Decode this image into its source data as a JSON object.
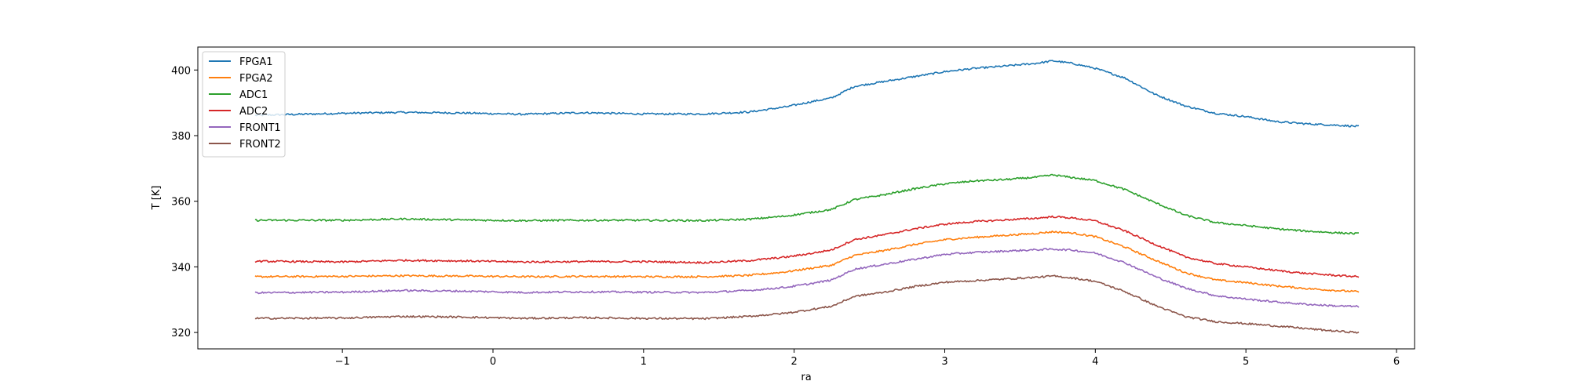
{
  "chart_data": {
    "type": "line",
    "title": "",
    "xlabel": "ra",
    "ylabel": "T [K]",
    "xlim": [
      -1.96,
      6.12
    ],
    "ylim": [
      315,
      407
    ],
    "xticks": [
      -1,
      0,
      1,
      2,
      3,
      4,
      5,
      6
    ],
    "xtick_labels": [
      "−1",
      "0",
      "1",
      "2",
      "3",
      "4",
      "5",
      "6"
    ],
    "yticks": [
      320,
      340,
      360,
      380,
      400
    ],
    "ytick_labels": [
      "320",
      "340",
      "360",
      "380",
      "400"
    ],
    "grid": false,
    "legend_position": "top-left",
    "series": [
      {
        "name": "FPGA1",
        "color": "#1f77b4",
        "x": [
          -1.58,
          -1.0,
          -0.6,
          -0.2,
          0.2,
          0.6,
          1.0,
          1.4,
          1.7,
          1.95,
          2.1,
          2.25,
          2.4,
          2.6,
          2.8,
          3.0,
          3.2,
          3.4,
          3.6,
          3.72,
          3.85,
          4.0,
          4.2,
          4.4,
          4.6,
          4.8,
          5.0,
          5.2,
          5.4,
          5.6,
          5.75
        ],
        "y": [
          386.2,
          386.8,
          387.1,
          386.9,
          386.5,
          387.0,
          386.6,
          386.6,
          387.2,
          388.8,
          390.2,
          391.5,
          395.0,
          396.5,
          398.0,
          399.5,
          400.5,
          401.2,
          402.0,
          402.8,
          402.0,
          400.5,
          397.5,
          392.5,
          389.0,
          386.8,
          385.8,
          384.3,
          383.6,
          383.2,
          382.8
        ]
      },
      {
        "name": "FPGA2",
        "color": "#ff7f0e",
        "x": [
          -1.58,
          -1.0,
          -0.6,
          -0.2,
          0.2,
          0.6,
          1.0,
          1.4,
          1.7,
          1.95,
          2.1,
          2.25,
          2.4,
          2.6,
          2.8,
          3.0,
          3.2,
          3.4,
          3.6,
          3.72,
          3.85,
          4.0,
          4.2,
          4.4,
          4.6,
          4.8,
          5.0,
          5.2,
          5.4,
          5.6,
          5.75
        ],
        "y": [
          337.0,
          337.1,
          337.3,
          337.2,
          337.0,
          337.1,
          337.0,
          337.0,
          337.4,
          338.5,
          339.5,
          340.5,
          343.5,
          345.0,
          346.8,
          348.3,
          349.0,
          349.6,
          350.2,
          350.7,
          350.3,
          349.2,
          346.0,
          342.0,
          338.2,
          336.0,
          335.2,
          334.2,
          333.4,
          332.8,
          332.4
        ]
      },
      {
        "name": "ADC1",
        "color": "#2ca02c",
        "x": [
          -1.58,
          -1.0,
          -0.6,
          -0.2,
          0.2,
          0.6,
          1.0,
          1.4,
          1.7,
          1.95,
          2.1,
          2.25,
          2.4,
          2.6,
          2.8,
          3.0,
          3.2,
          3.4,
          3.6,
          3.72,
          3.85,
          4.0,
          4.2,
          4.4,
          4.6,
          4.8,
          5.0,
          5.2,
          5.4,
          5.6,
          5.75
        ],
        "y": [
          354.2,
          354.2,
          354.6,
          354.3,
          354.1,
          354.2,
          354.2,
          354.1,
          354.5,
          355.5,
          356.5,
          357.5,
          360.5,
          362.0,
          363.8,
          365.3,
          366.2,
          366.6,
          367.3,
          368.0,
          367.2,
          366.3,
          363.5,
          359.5,
          355.7,
          353.5,
          352.6,
          351.6,
          350.9,
          350.4,
          350.1
        ]
      },
      {
        "name": "ADC2",
        "color": "#d62728",
        "x": [
          -1.58,
          -1.0,
          -0.6,
          -0.2,
          0.2,
          0.6,
          1.0,
          1.4,
          1.7,
          1.95,
          2.1,
          2.25,
          2.4,
          2.6,
          2.8,
          3.0,
          3.2,
          3.4,
          3.6,
          3.72,
          3.85,
          4.0,
          4.2,
          4.4,
          4.6,
          4.8,
          5.0,
          5.2,
          5.4,
          5.6,
          5.75
        ],
        "y": [
          341.7,
          341.5,
          342.0,
          341.8,
          341.5,
          341.6,
          341.6,
          341.3,
          341.9,
          343.0,
          344.0,
          345.2,
          348.3,
          349.8,
          351.6,
          353.0,
          353.8,
          354.3,
          354.8,
          355.3,
          354.9,
          354.0,
          350.9,
          346.8,
          343.0,
          341.0,
          340.0,
          338.9,
          338.0,
          337.4,
          337.0
        ]
      },
      {
        "name": "FRONT1",
        "color": "#9467bd",
        "x": [
          -1.58,
          -1.0,
          -0.6,
          -0.2,
          0.2,
          0.6,
          1.0,
          1.4,
          1.7,
          1.95,
          2.1,
          2.25,
          2.4,
          2.6,
          2.8,
          3.0,
          3.2,
          3.4,
          3.6,
          3.72,
          3.85,
          4.0,
          4.2,
          4.4,
          4.6,
          4.8,
          5.0,
          5.2,
          5.4,
          5.6,
          5.75
        ],
        "y": [
          332.1,
          332.3,
          332.8,
          332.6,
          332.2,
          332.4,
          332.3,
          332.2,
          332.8,
          333.8,
          334.8,
          336.0,
          339.3,
          340.8,
          342.3,
          343.8,
          344.4,
          344.8,
          345.2,
          345.4,
          345.1,
          344.2,
          341.2,
          337.0,
          333.5,
          331.2,
          330.2,
          329.3,
          328.6,
          328.1,
          327.9
        ]
      },
      {
        "name": "FRONT2",
        "color": "#8c564b",
        "x": [
          -1.58,
          -1.0,
          -0.6,
          -0.2,
          0.2,
          0.6,
          1.0,
          1.4,
          1.7,
          1.95,
          2.1,
          2.25,
          2.4,
          2.6,
          2.8,
          3.0,
          3.2,
          3.4,
          3.6,
          3.72,
          3.85,
          4.0,
          4.2,
          4.4,
          4.6,
          4.8,
          5.0,
          5.2,
          5.4,
          5.6,
          5.75
        ],
        "y": [
          324.3,
          324.4,
          324.9,
          324.7,
          324.3,
          324.5,
          324.3,
          324.2,
          324.9,
          325.9,
          326.9,
          328.0,
          331.0,
          332.3,
          334.0,
          335.3,
          335.8,
          336.3,
          336.8,
          337.2,
          336.6,
          335.6,
          332.4,
          328.2,
          324.8,
          323.3,
          322.7,
          322.0,
          321.2,
          320.4,
          320.0
        ]
      }
    ]
  }
}
